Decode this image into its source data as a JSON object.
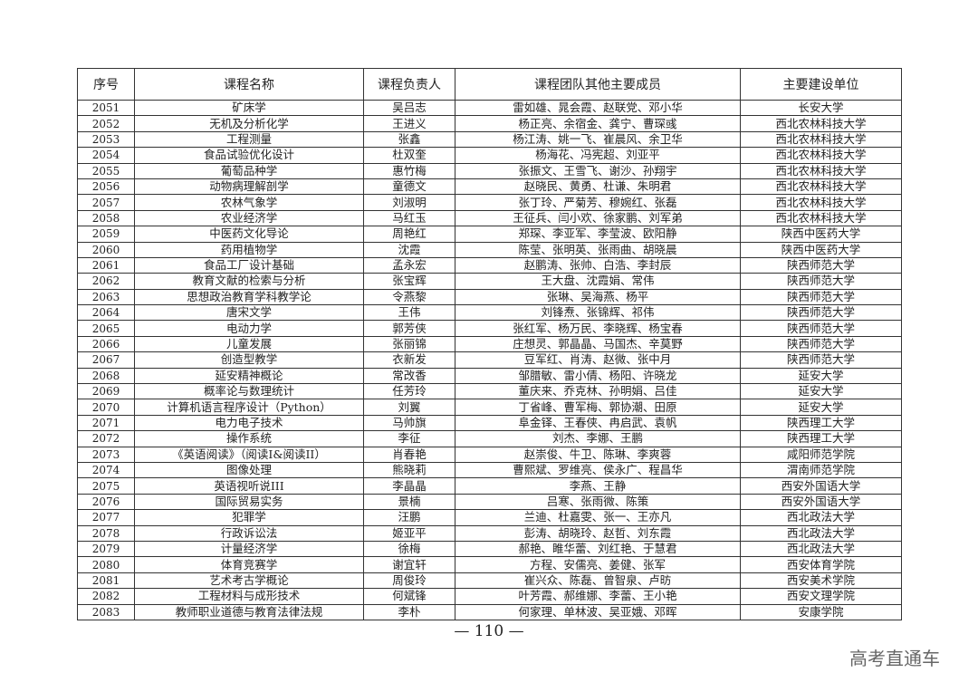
{
  "table": {
    "headers": [
      "序号",
      "课程名称",
      "课程负责人",
      "课程团队其他主要成员",
      "主要建设单位"
    ],
    "rows": [
      [
        "2051",
        "矿床学",
        "吴吕志",
        "雷如雄、晁会霞、赵联党、邓小华",
        "长安大学"
      ],
      [
        "2052",
        "无机及分析化学",
        "王进义",
        "杨正亮、余宿金、龚宁、曹琛彧",
        "西北农林科技大学"
      ],
      [
        "2053",
        "工程测量",
        "张鑫",
        "杨江涛、姚一飞、崔晨风、余卫华",
        "西北农林科技大学"
      ],
      [
        "2054",
        "食品试验优化设计",
        "杜双奎",
        "杨海花、冯宪超、刘亚平",
        "西北农林科技大学"
      ],
      [
        "2055",
        "葡萄品种学",
        "惠竹梅",
        "张振文、王雪飞、谢沙、孙翔宇",
        "西北农林科技大学"
      ],
      [
        "2056",
        "动物病理解剖学",
        "童德文",
        "赵晓民、黄勇、杜谦、朱明君",
        "西北农林科技大学"
      ],
      [
        "2057",
        "农林气象学",
        "刘淑明",
        "张丁玲、严菊芳、穆婉红、张磊",
        "西北农林科技大学"
      ],
      [
        "2058",
        "农业经济学",
        "马红玉",
        "王征兵、闫小欢、徐家鹏、刘军弟",
        "西北农林科技大学"
      ],
      [
        "2059",
        "中医药文化导论",
        "周艳红",
        "郑琛、李亚军、李莹波、欧阳静",
        "陕西中医药大学"
      ],
      [
        "2060",
        "药用植物学",
        "沈霞",
        "陈莹、张明英、张雨曲、胡晓晨",
        "陕西中医药大学"
      ],
      [
        "2061",
        "食品工厂设计基础",
        "孟永宏",
        "赵鹏涛、张帅、白浩、李封辰",
        "陕西师范大学"
      ],
      [
        "2062",
        "教育文献的检索与分析",
        "张宝辉",
        "王大盘、沈霞娟、常伟",
        "陕西师范大学"
      ],
      [
        "2063",
        "思想政治教育学科教学论",
        "令燕黎",
        "张琳、吴海燕、杨平",
        "陕西师范大学"
      ],
      [
        "2064",
        "唐宋文学",
        "王伟",
        "刘锋焘、张锦辉、祁伟",
        "陕西师范大学"
      ],
      [
        "2065",
        "电动力学",
        "郭芳侠",
        "张红军、杨万民、李晓辉、杨宝春",
        "陕西师范大学"
      ],
      [
        "2066",
        "儿童发展",
        "张丽锦",
        "庄想灵、郭晶晶、马国杰、辛莫野",
        "陕西师范大学"
      ],
      [
        "2067",
        "创造型教学",
        "衣新发",
        "豆军红、肖涛、赵微、张中月",
        "陕西师范大学"
      ],
      [
        "2068",
        "延安精神概论",
        "常改香",
        "邹腊敏、雷小倩、杨阳、许晓龙",
        "延安大学"
      ],
      [
        "2069",
        "概率论与数理统计",
        "任芳玲",
        "董庆来、乔克林、孙明娟、吕佳",
        "延安大学"
      ],
      [
        "2070",
        "计算机语言程序设计（Python）",
        "刘翼",
        "丁省峰、曹军梅、郭协潮、田原",
        "延安大学"
      ],
      [
        "2071",
        "电力电子技术",
        "马帅旗",
        "阜金铎、王春侠、冉启武、袁帆",
        "陕西理工大学"
      ],
      [
        "2072",
        "操作系统",
        "李征",
        "刘杰、李娜、王鹏",
        "陕西理工大学"
      ],
      [
        "2073",
        "《英语阅读》（阅读I&阅读II）",
        "肖春艳",
        "赵崇俊、牛卫、陈琳、李爽蓉",
        "咸阳师范学院"
      ],
      [
        "2074",
        "图像处理",
        "熊晓莉",
        "曹熙斌、罗维亮、侯永广、程昌华",
        "渭南师范学院"
      ],
      [
        "2075",
        "英语视听说III",
        "李晶晶",
        "李燕、王静",
        "西安外国语大学"
      ],
      [
        "2076",
        "国际贸易实务",
        "景楠",
        "吕寒、张雨微、陈策",
        "西安外国语大学"
      ],
      [
        "2077",
        "犯罪学",
        "汪鹏",
        "兰迪、杜嘉雯、张一、王亦凡",
        "西北政法大学"
      ],
      [
        "2078",
        "行政诉讼法",
        "姬亚平",
        "彭涛、胡晓玲、赵哲、刘东霞",
        "西北政法大学"
      ],
      [
        "2079",
        "计量经济学",
        "徐梅",
        "郝艳、睢华蕾、刘红艳、于慧君",
        "西北政法大学"
      ],
      [
        "2080",
        "体育竞赛学",
        "谢宜轩",
        "方程、安儒亮、姜健、张军",
        "西安体育学院"
      ],
      [
        "2081",
        "艺术考古学概论",
        "周俊玲",
        "崔兴众、陈磊、曾智泉、卢昉",
        "西安美术学院"
      ],
      [
        "2082",
        "工程材料与成形技术",
        "何斌锋",
        "叶芳霞、郝维娜、李蕾、王小艳",
        "西安文理学院"
      ],
      [
        "2083",
        "教师职业道德与教育法律法规",
        "李朴",
        "何家理、单林波、吴亚娥、邓晖",
        "安康学院"
      ]
    ]
  },
  "footer": {
    "page_number": "— 110 —"
  },
  "watermark": "高考直通车"
}
